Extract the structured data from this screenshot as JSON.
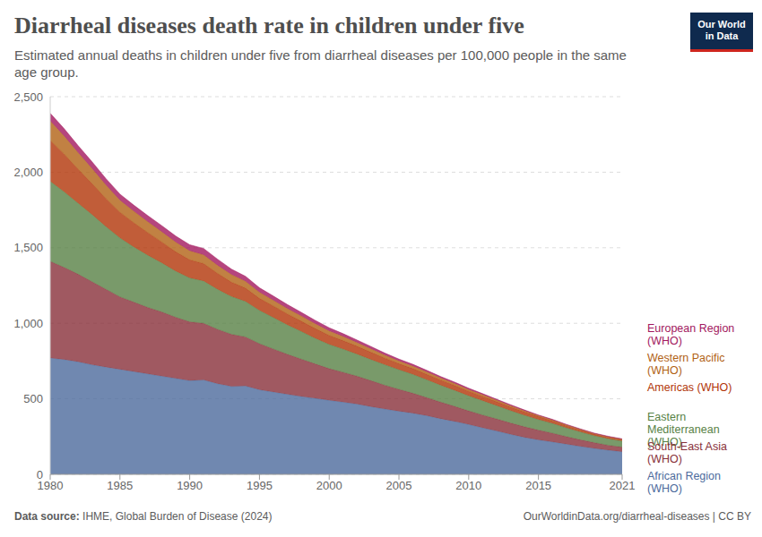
{
  "chart_data": {
    "type": "area",
    "stacked": true,
    "grid": true,
    "title": "Diarrheal diseases death rate in children under five",
    "subtitle": "Estimated annual deaths in children under five from diarrheal diseases per 100,000 people in the same age group.",
    "source_label": "Data source:",
    "source": "IHME, Global Burden of Disease (2024)",
    "url": "OurWorldinData.org/diarrheal-diseases | CC BY",
    "logo": [
      "Our World",
      "in Data"
    ],
    "x": [
      1980,
      1981,
      1982,
      1983,
      1984,
      1985,
      1986,
      1987,
      1988,
      1989,
      1990,
      1991,
      1992,
      1993,
      1994,
      1995,
      1996,
      1997,
      1998,
      1999,
      2000,
      2001,
      2002,
      2003,
      2004,
      2005,
      2006,
      2007,
      2008,
      2009,
      2010,
      2011,
      2012,
      2013,
      2014,
      2015,
      2016,
      2017,
      2018,
      2019,
      2020,
      2021
    ],
    "xlim": [
      1980,
      2021
    ],
    "xticks": [
      1980,
      1985,
      1990,
      1995,
      2000,
      2005,
      2010,
      2015,
      2021
    ],
    "ylim": [
      0,
      2500
    ],
    "yticks": [
      0,
      500,
      {
        "value": 1000,
        "label": "1,000"
      },
      {
        "value": 1500,
        "label": "1,500"
      },
      {
        "value": 2000,
        "label": "2,000"
      },
      {
        "value": 2500,
        "label": "2,500"
      }
    ],
    "series": [
      {
        "name": "African Region (WHO)",
        "color": "#4c6a9c",
        "values": [
          770,
          760,
          745,
          725,
          710,
          695,
          680,
          665,
          650,
          635,
          620,
          625,
          600,
          582,
          585,
          560,
          545,
          530,
          515,
          503,
          490,
          478,
          465,
          448,
          432,
          418,
          405,
          388,
          368,
          350,
          330,
          308,
          287,
          265,
          245,
          228,
          215,
          200,
          185,
          172,
          160,
          150
        ]
      },
      {
        "name": "South-East Asia (WHO)",
        "color": "#883039",
        "values": [
          640,
          610,
          580,
          550,
          515,
          480,
          460,
          440,
          425,
          405,
          390,
          375,
          360,
          345,
          325,
          305,
          285,
          265,
          248,
          228,
          210,
          198,
          185,
          172,
          158,
          145,
          132,
          120,
          110,
          100,
          90,
          85,
          80,
          75,
          70,
          65,
          58,
          50,
          44,
          38,
          33,
          30
        ]
      },
      {
        "name": "Eastern Mediterranean (WHO)",
        "color": "#578145",
        "values": [
          530,
          500,
          470,
          445,
          415,
          390,
          365,
          345,
          325,
          305,
          290,
          280,
          265,
          250,
          235,
          220,
          208,
          195,
          183,
          170,
          160,
          153,
          146,
          140,
          135,
          130,
          125,
          118,
          112,
          106,
          100,
          95,
          88,
          82,
          76,
          70,
          64,
          58,
          52,
          46,
          43,
          40
        ]
      },
      {
        "name": "Americas (WHO)",
        "color": "#b13507",
        "values": [
          270,
          250,
          225,
          205,
          185,
          170,
          160,
          150,
          138,
          128,
          120,
          115,
          105,
          95,
          88,
          80,
          76,
          72,
          68,
          64,
          60,
          56,
          52,
          48,
          44,
          40,
          38,
          36,
          34,
          32,
          30,
          28,
          26,
          24,
          22,
          20,
          17,
          14,
          12,
          10,
          9,
          8
        ]
      },
      {
        "name": "Western Pacific (WHO)",
        "color": "#b16214",
        "values": [
          130,
          120,
          110,
          100,
          90,
          80,
          76,
          72,
          68,
          64,
          60,
          58,
          54,
          50,
          45,
          40,
          38,
          36,
          34,
          32,
          30,
          28,
          25,
          23,
          20,
          18,
          17,
          16,
          14,
          13,
          12,
          11,
          10,
          9,
          8,
          6,
          6,
          5,
          5,
          4,
          4,
          4
        ]
      },
      {
        "name": "European Region (WHO)",
        "color": "#a2175e",
        "values": [
          50,
          48,
          46,
          44,
          42,
          40,
          40,
          40,
          40,
          40,
          40,
          42,
          40,
          36,
          33,
          30,
          28,
          26,
          24,
          22,
          20,
          18,
          16,
          15,
          13,
          12,
          11,
          10,
          9,
          9,
          8,
          7,
          6,
          6,
          5,
          4,
          4,
          4,
          3,
          3,
          3,
          3
        ]
      }
    ]
  }
}
